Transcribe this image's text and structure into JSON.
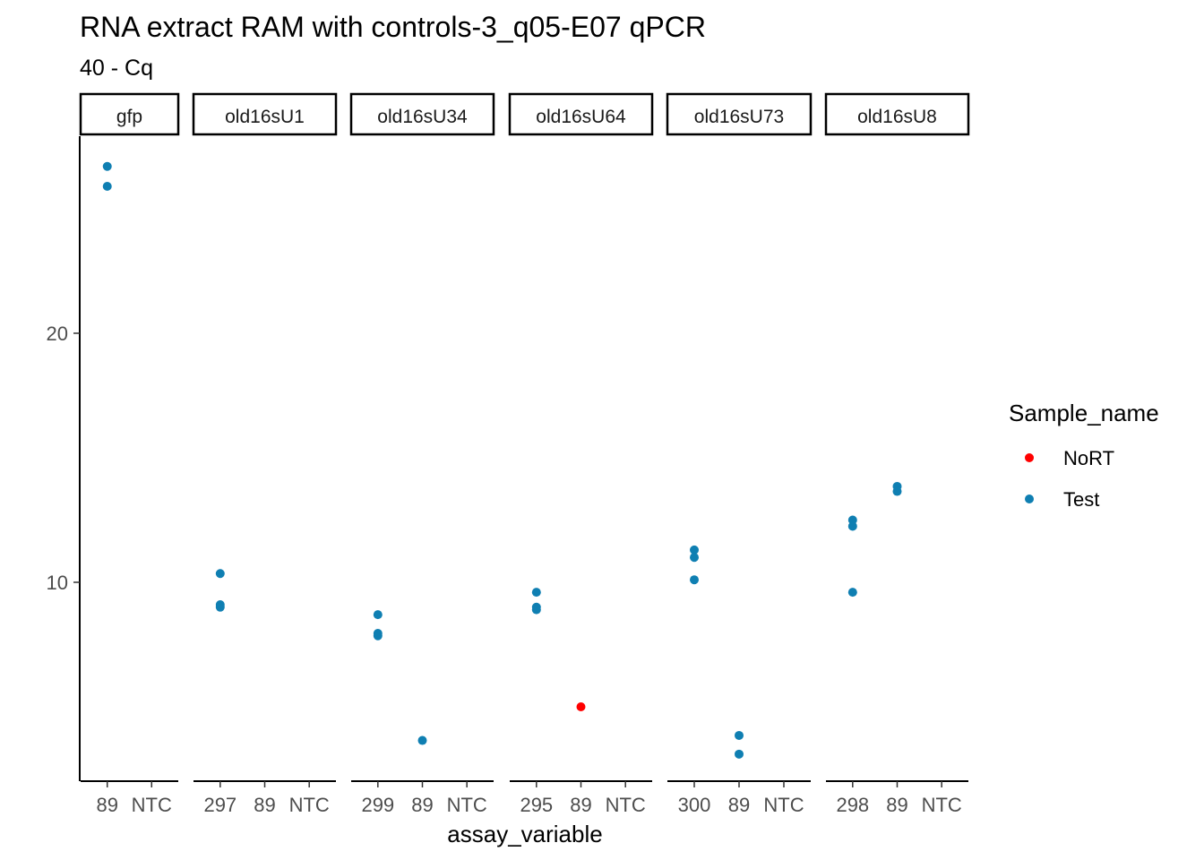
{
  "chart_data": {
    "type": "scatter",
    "title": "RNA extract RAM with controls-3_q05-E07 qPCR",
    "subtitle": "40 - Cq",
    "xlabel": "assay_variable",
    "ylabel": "",
    "ylim": [
      2.2,
      28.0
    ],
    "yticks": [
      10,
      20
    ],
    "grid": false,
    "legend": {
      "title": "Sample_name",
      "position": "right",
      "entries": [
        {
          "label": "NoRT",
          "color": "#ff0000"
        },
        {
          "label": "Test",
          "color": "#0f7fb2"
        }
      ]
    },
    "facets": [
      {
        "label": "gfp",
        "categories": [
          "89",
          "NTC"
        ],
        "points": [
          {
            "x": "89",
            "y": 26.7,
            "series": "Test"
          },
          {
            "x": "89",
            "y": 25.9,
            "series": "Test"
          }
        ]
      },
      {
        "label": "old16sU1",
        "categories": [
          "297",
          "89",
          "NTC"
        ],
        "points": [
          {
            "x": "297",
            "y": 10.35,
            "series": "Test"
          },
          {
            "x": "297",
            "y": 9.1,
            "series": "Test"
          },
          {
            "x": "297",
            "y": 9.0,
            "series": "Test"
          }
        ]
      },
      {
        "label": "old16sU34",
        "categories": [
          "299",
          "89",
          "NTC"
        ],
        "points": [
          {
            "x": "299",
            "y": 8.7,
            "series": "Test"
          },
          {
            "x": "299",
            "y": 7.95,
            "series": "Test"
          },
          {
            "x": "299",
            "y": 7.85,
            "series": "Test"
          },
          {
            "x": "89",
            "y": 3.65,
            "series": "Test"
          }
        ]
      },
      {
        "label": "old16sU64",
        "categories": [
          "295",
          "89",
          "NTC"
        ],
        "points": [
          {
            "x": "295",
            "y": 9.6,
            "series": "Test"
          },
          {
            "x": "295",
            "y": 9.0,
            "series": "Test"
          },
          {
            "x": "295",
            "y": 8.9,
            "series": "Test"
          },
          {
            "x": "89",
            "y": 5.0,
            "series": "NoRT"
          }
        ]
      },
      {
        "label": "old16sU73",
        "categories": [
          "300",
          "89",
          "NTC"
        ],
        "points": [
          {
            "x": "300",
            "y": 11.3,
            "series": "Test"
          },
          {
            "x": "300",
            "y": 11.0,
            "series": "Test"
          },
          {
            "x": "300",
            "y": 10.1,
            "series": "Test"
          },
          {
            "x": "89",
            "y": 3.85,
            "series": "Test"
          },
          {
            "x": "89",
            "y": 3.1,
            "series": "Test"
          }
        ]
      },
      {
        "label": "old16sU8",
        "categories": [
          "298",
          "89",
          "NTC"
        ],
        "points": [
          {
            "x": "298",
            "y": 12.5,
            "series": "Test"
          },
          {
            "x": "298",
            "y": 12.25,
            "series": "Test"
          },
          {
            "x": "298",
            "y": 9.6,
            "series": "Test"
          },
          {
            "x": "89",
            "y": 13.85,
            "series": "Test"
          },
          {
            "x": "89",
            "y": 13.65,
            "series": "Test"
          }
        ]
      }
    ]
  }
}
